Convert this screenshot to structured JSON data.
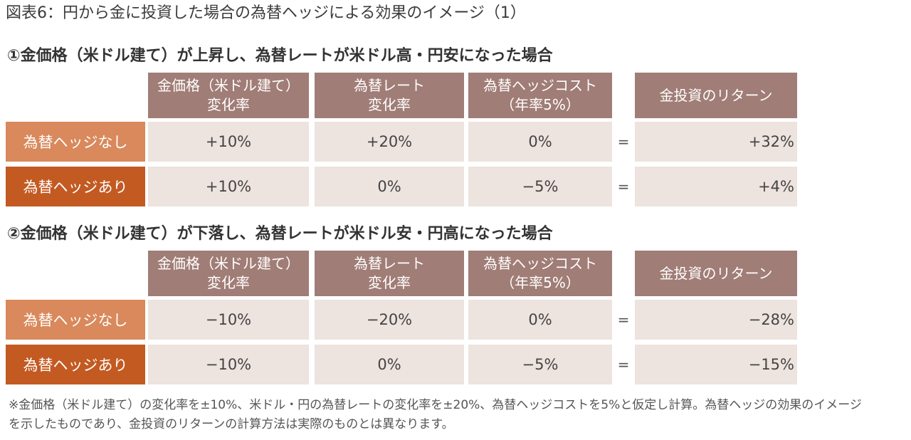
{
  "title": "図表6：円から金に投資した場合の為替ヘッジによる効果のイメージ（1）",
  "columns": {
    "gold_change": [
      "金価格（米ドル建て）",
      "変化率"
    ],
    "fx_change": [
      "為替レート",
      "変化率"
    ],
    "hedge_cost": [
      "為替ヘッジコスト",
      "（年率5%）"
    ],
    "return": "金投資のリターン"
  },
  "equals_sign": "=",
  "row_labels": {
    "no_hedge": "為替ヘッジなし",
    "hedge": "為替ヘッジあり"
  },
  "sections": [
    {
      "heading": "①金価格（米ドル建て）が上昇し、為替レートが米ドル高・円安になった場合",
      "rows": [
        {
          "gold_change": "+10%",
          "fx_change": "+20%",
          "hedge_cost": "0%",
          "return": "+32%"
        },
        {
          "gold_change": "+10%",
          "fx_change": "0%",
          "hedge_cost": "−5%",
          "return": "+4%"
        }
      ]
    },
    {
      "heading": "②金価格（米ドル建て）が下落し、為替レートが米ドル安・円高になった場合",
      "rows": [
        {
          "gold_change": "−10%",
          "fx_change": "−20%",
          "hedge_cost": "0%",
          "return": "−28%"
        },
        {
          "gold_change": "−10%",
          "fx_change": "0%",
          "hedge_cost": "−5%",
          "return": "−15%"
        }
      ]
    }
  ],
  "note": "※金価格（米ドル建て）の変化率を±10%、米ドル・円の為替レートの変化率を±20%、為替ヘッジコストを5%と仮定し計算。為替ヘッジの効果のイメージを示したものであり、金投資のリターンの計算方法は実際のものとは異なります。",
  "colors": {
    "header_bg": "#a07d76",
    "no_hedge_label_bg": "#d9895b",
    "hedge_label_bg": "#c35a22",
    "value_cell_bg": "#ede3df"
  }
}
